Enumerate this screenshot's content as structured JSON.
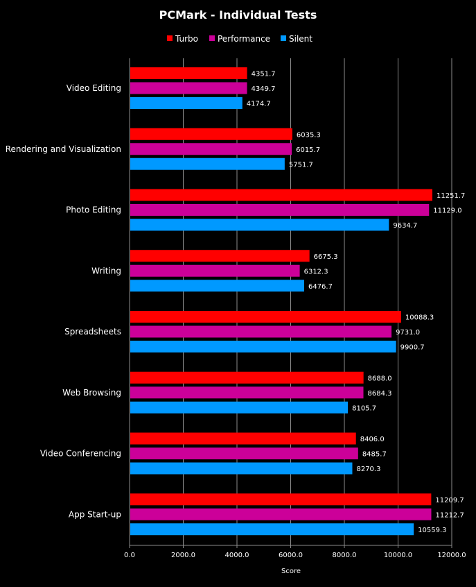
{
  "chart_data": {
    "type": "bar",
    "orientation": "horizontal",
    "title": "PCMark - Individual Tests",
    "xlabel": "Score",
    "ylabel": "",
    "xlim": [
      0,
      12000
    ],
    "ticks": [
      "0.0",
      "2000.0",
      "4000.0",
      "6000.0",
      "8000.0",
      "10000.0",
      "12000.0"
    ],
    "tick_values": [
      0,
      2000,
      4000,
      6000,
      8000,
      10000,
      12000
    ],
    "grid": true,
    "legend_position": "top-center",
    "categories": [
      "Video Editing",
      "Rendering and Visualization",
      "Photo Editing",
      "Writing",
      "Spreadsheets",
      "Web Browsing",
      "Video Conferencing",
      "App Start-up"
    ],
    "series": [
      {
        "name": "Turbo",
        "color": "#ff0000",
        "values": [
          4351.7,
          6035.3,
          11251.7,
          6675.3,
          10088.3,
          8688.0,
          8406.0,
          11209.7
        ],
        "labels": [
          "4351.7",
          "6035.3",
          "11251.7",
          "6675.3",
          "10088.3",
          "8688.0",
          "8406.0",
          "11209.7"
        ]
      },
      {
        "name": "Performance",
        "color": "#cc0099",
        "values": [
          4349.7,
          6015.7,
          11129.0,
          6312.3,
          9731.0,
          8684.3,
          8485.7,
          11212.7
        ],
        "labels": [
          "4349.7",
          "6015.7",
          "11129.0",
          "6312.3",
          "9731.0",
          "8684.3",
          "8485.7",
          "11212.7"
        ]
      },
      {
        "name": "Silent",
        "color": "#0099ff",
        "values": [
          4174.7,
          5751.7,
          9634.7,
          6476.7,
          9900.7,
          8105.7,
          8270.3,
          10559.3
        ],
        "labels": [
          "4174.7",
          "5751.7",
          "9634.7",
          "6476.7",
          "9900.7",
          "8105.7",
          "8270.3",
          "10559.3"
        ]
      }
    ]
  }
}
